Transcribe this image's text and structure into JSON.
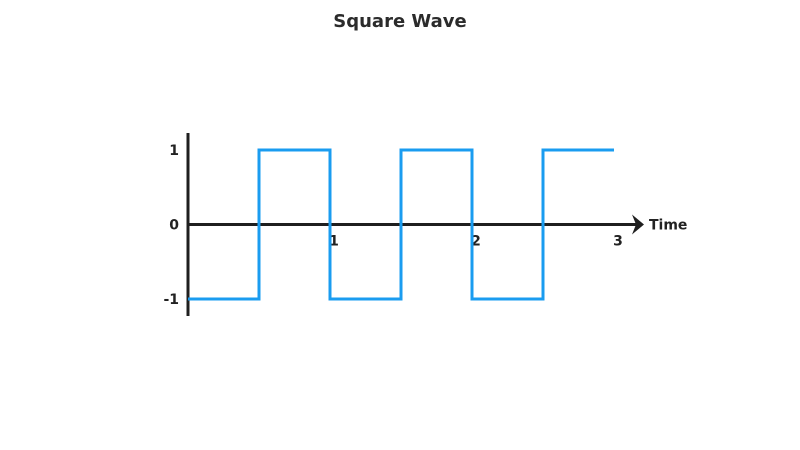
{
  "chart_data": {
    "type": "line",
    "title": "Square Wave",
    "xlabel": "Time",
    "ylabel": "",
    "xlim": [
      0,
      3
    ],
    "ylim": [
      -1,
      1
    ],
    "x_ticks": [
      "1",
      "2",
      "3"
    ],
    "y_ticks": [
      "1",
      "0",
      "-1"
    ],
    "grid": false,
    "series": [
      {
        "step": "post",
        "x": [
          0,
          0.5,
          1,
          1.5,
          2,
          2.5,
          3
        ],
        "y": [
          -1,
          1,
          -1,
          1,
          -1,
          1,
          1
        ]
      }
    ]
  },
  "colors": {
    "wave": "#1a9cf0",
    "axis": "#1f1f1f",
    "text": "#222222"
  }
}
